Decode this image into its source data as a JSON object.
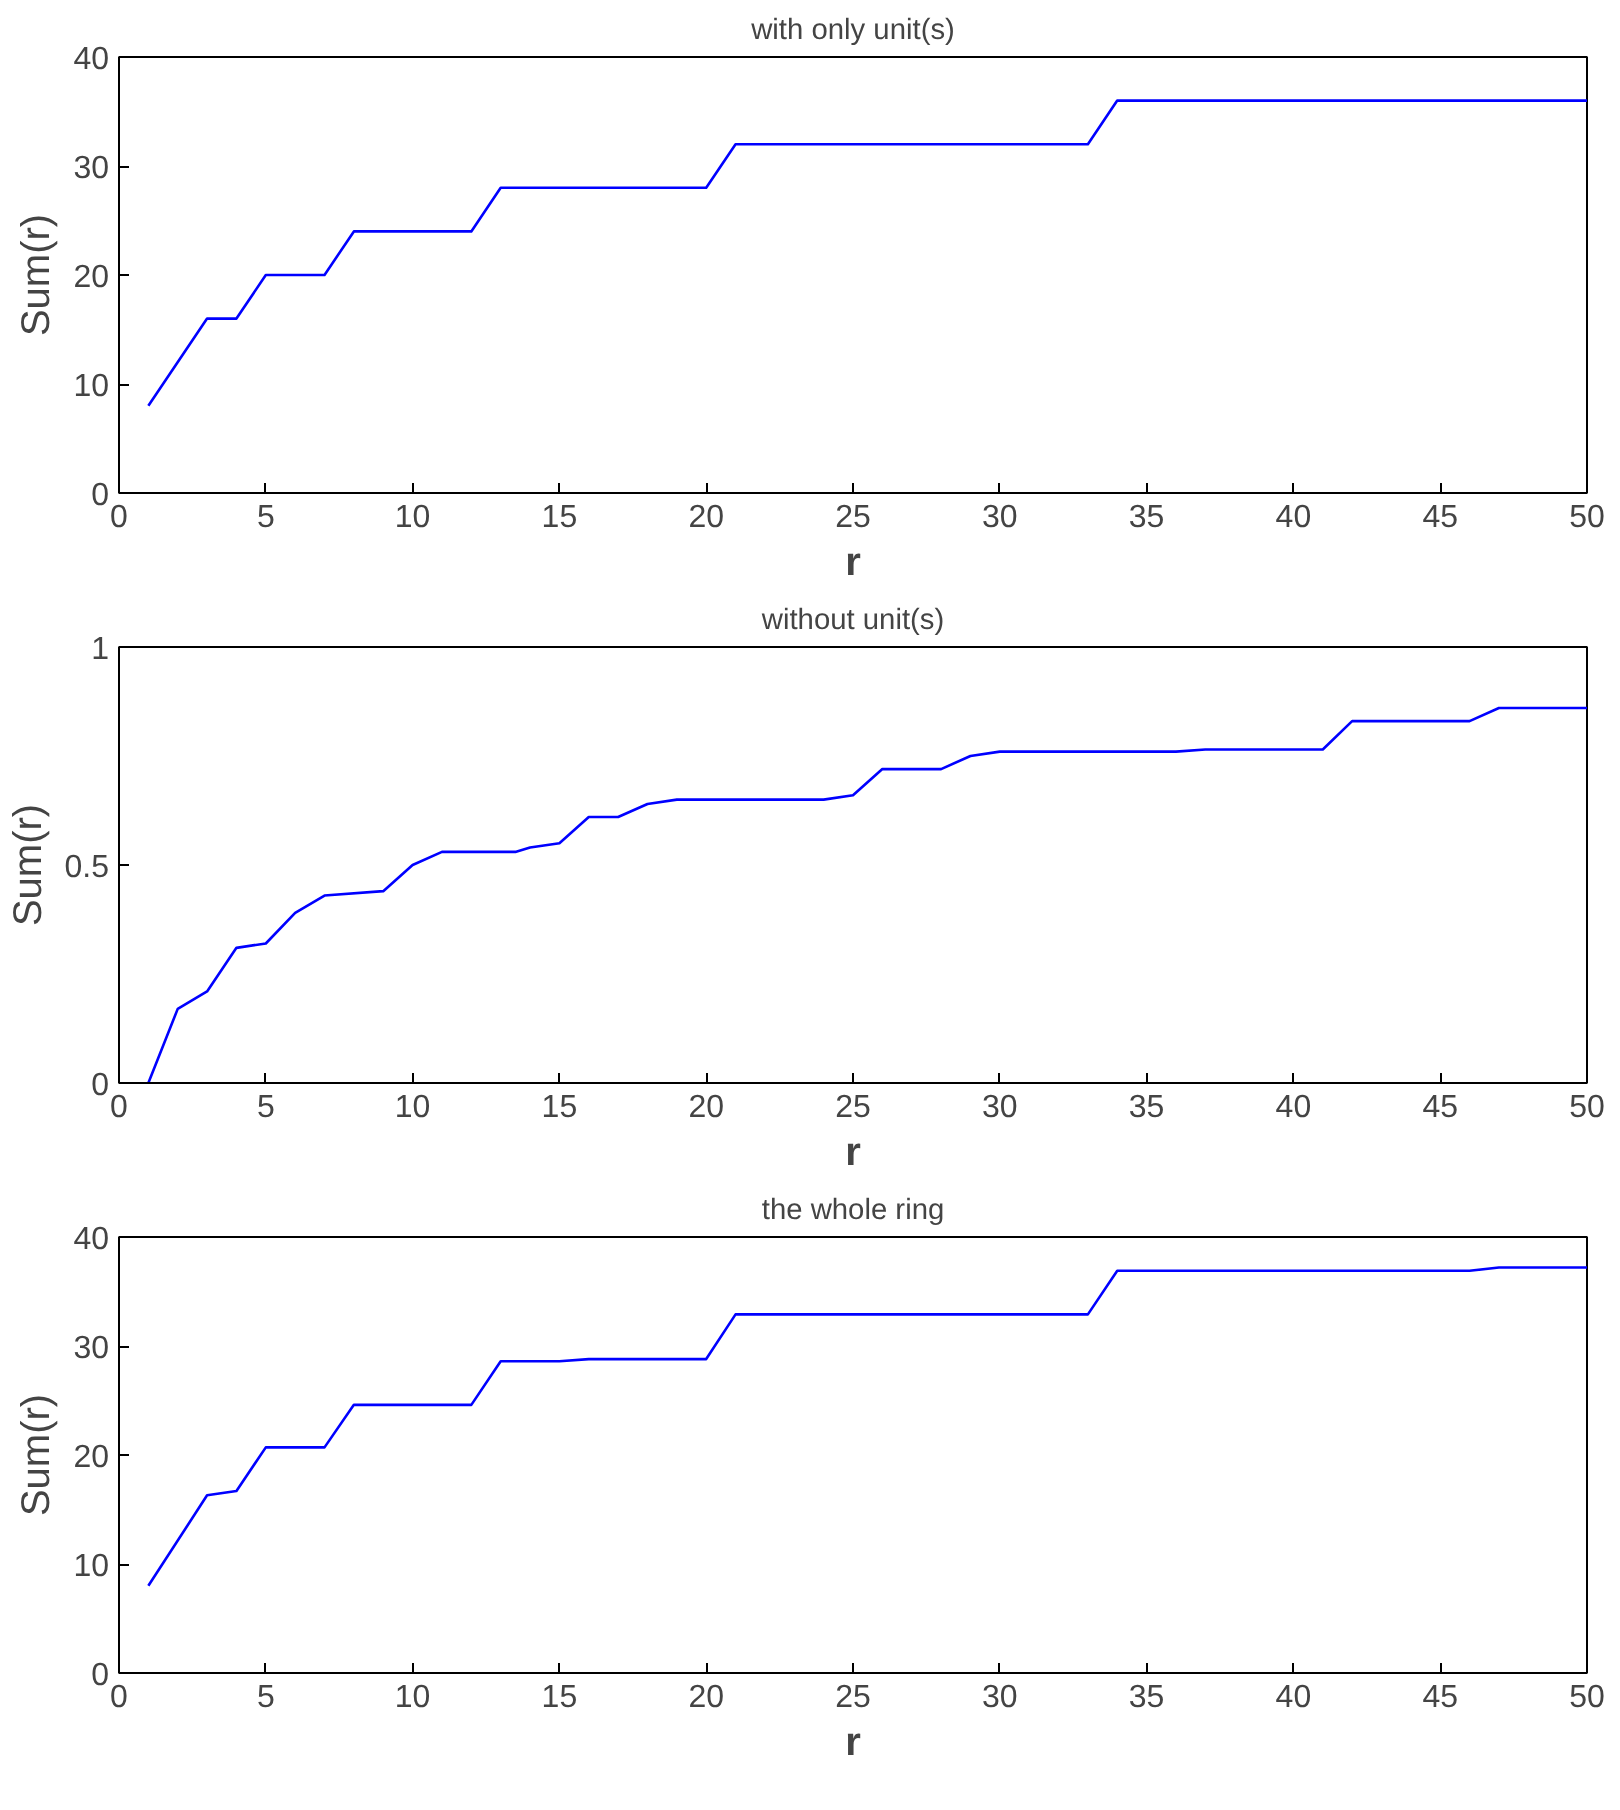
{
  "chart_data": [
    {
      "type": "line",
      "title": "with only unit(s)",
      "xlabel": "r",
      "ylabel": "Sum(r)",
      "xlim": [
        0,
        50
      ],
      "ylim": [
        0,
        40
      ],
      "xticks": [
        0,
        5,
        10,
        15,
        20,
        25,
        30,
        35,
        40,
        45,
        50
      ],
      "yticks": [
        0,
        10,
        20,
        30,
        40
      ],
      "grid": false,
      "marker": "none",
      "line_style": "solid",
      "series": [
        {
          "color": "#0000ff",
          "x": [
            1,
            3,
            4,
            5,
            7,
            8,
            12,
            13,
            20,
            21,
            33,
            34,
            50
          ],
          "values": [
            8,
            16,
            16,
            20,
            20,
            24,
            24,
            28,
            28,
            32,
            32,
            36,
            36
          ]
        }
      ]
    },
    {
      "type": "line",
      "title": "without unit(s)",
      "xlabel": "r",
      "ylabel": "Sum(r)",
      "xlim": [
        0,
        50
      ],
      "ylim": [
        0,
        1
      ],
      "xticks": [
        0,
        5,
        10,
        15,
        20,
        25,
        30,
        35,
        40,
        45,
        50
      ],
      "yticks": [
        0,
        0.5,
        1
      ],
      "grid": false,
      "marker": "none",
      "line_style": "solid",
      "series": [
        {
          "color": "#0000ff",
          "x": [
            1,
            2,
            3,
            4,
            5,
            6,
            7,
            9,
            10,
            11,
            13.5,
            14,
            15,
            16,
            17,
            18,
            19,
            24,
            25,
            26,
            28,
            29,
            30,
            36,
            37,
            41,
            42,
            46,
            47,
            50
          ],
          "values": [
            0,
            0.17,
            0.21,
            0.31,
            0.32,
            0.39,
            0.43,
            0.44,
            0.5,
            0.53,
            0.53,
            0.54,
            0.55,
            0.61,
            0.61,
            0.64,
            0.65,
            0.65,
            0.66,
            0.72,
            0.72,
            0.75,
            0.76,
            0.76,
            0.765,
            0.765,
            0.83,
            0.83,
            0.86,
            0.86
          ]
        }
      ]
    },
    {
      "type": "line",
      "title": "the whole ring",
      "xlabel": "r",
      "ylabel": "Sum(r)",
      "xlim": [
        0,
        50
      ],
      "ylim": [
        0,
        40
      ],
      "xticks": [
        0,
        5,
        10,
        15,
        20,
        25,
        30,
        35,
        40,
        45,
        50
      ],
      "yticks": [
        0,
        10,
        20,
        30,
        40
      ],
      "grid": false,
      "marker": "none",
      "line_style": "solid",
      "series": [
        {
          "color": "#0000ff",
          "x": [
            1,
            3,
            4,
            5,
            7,
            8,
            12,
            13,
            15,
            16,
            20,
            21,
            33,
            34,
            46,
            47,
            50
          ],
          "values": [
            8,
            16.3,
            16.7,
            20.7,
            20.7,
            24.6,
            24.6,
            28.6,
            28.6,
            28.8,
            28.8,
            32.9,
            32.9,
            36.9,
            36.9,
            37.2,
            37.2
          ]
        }
      ]
    }
  ]
}
